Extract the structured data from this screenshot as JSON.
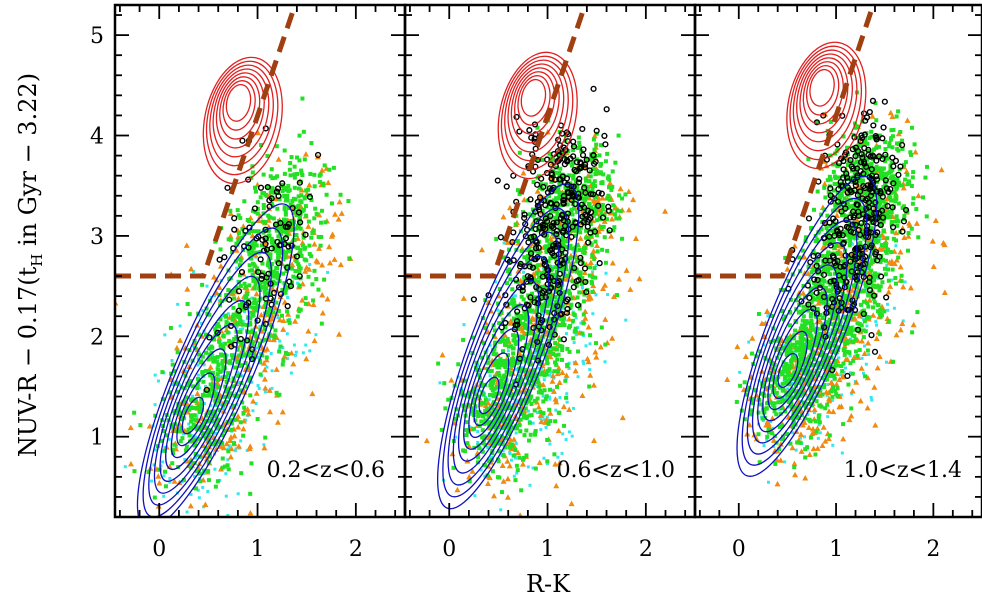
{
  "chart_data": {
    "type": "scatter",
    "xlabel": "R-K",
    "ylabel_main": "NUV-R − 0.17(t",
    "ylabel_sub": "H",
    "ylabel_rest": " in Gyr − 3.22)",
    "xlim": [
      -0.45,
      2.5
    ],
    "ylim": [
      0.2,
      5.3
    ],
    "xticks": [
      0,
      1,
      2
    ],
    "yticks": [
      1,
      2,
      3,
      4,
      5
    ],
    "grid": false,
    "colors": {
      "red_contours": "#e02020",
      "blue_contours": "#1010c0",
      "green_points": "#22e022",
      "orange_points": "#f08a10",
      "cyan_points": "#30e8f0",
      "black_points": "#000000",
      "dashed_line": "#a04010"
    },
    "selection_line": {
      "horizontal_y": 2.6,
      "break_x": 0.45,
      "slope": 2.9
    },
    "panels": [
      {
        "label": "0.2<z<0.6",
        "red_center": [
          0.8,
          4.35
        ],
        "blue_ridge": [
          [
            0.1,
            0.7
          ],
          [
            0.4,
            1.3
          ],
          [
            0.7,
            2.0
          ],
          [
            1.0,
            2.7
          ],
          [
            1.25,
            3.3
          ]
        ],
        "green_count": 900,
        "orange_count": 350,
        "cyan_count": 250,
        "black_count": 90
      },
      {
        "label": "0.6<z<1.0",
        "red_center": [
          0.85,
          4.4
        ],
        "blue_ridge": [
          [
            0.2,
            0.9
          ],
          [
            0.5,
            1.4
          ],
          [
            0.8,
            2.1
          ],
          [
            1.0,
            2.8
          ],
          [
            1.2,
            3.5
          ]
        ],
        "green_count": 1300,
        "orange_count": 450,
        "cyan_count": 250,
        "black_count": 330
      },
      {
        "label": "1.0<z<1.4",
        "red_center": [
          0.85,
          4.5
        ],
        "blue_ridge": [
          [
            0.3,
            1.2
          ],
          [
            0.6,
            1.7
          ],
          [
            0.9,
            2.3
          ],
          [
            1.1,
            2.9
          ],
          [
            1.3,
            3.6
          ]
        ],
        "green_count": 1500,
        "orange_count": 450,
        "cyan_count": 220,
        "black_count": 300
      }
    ]
  }
}
